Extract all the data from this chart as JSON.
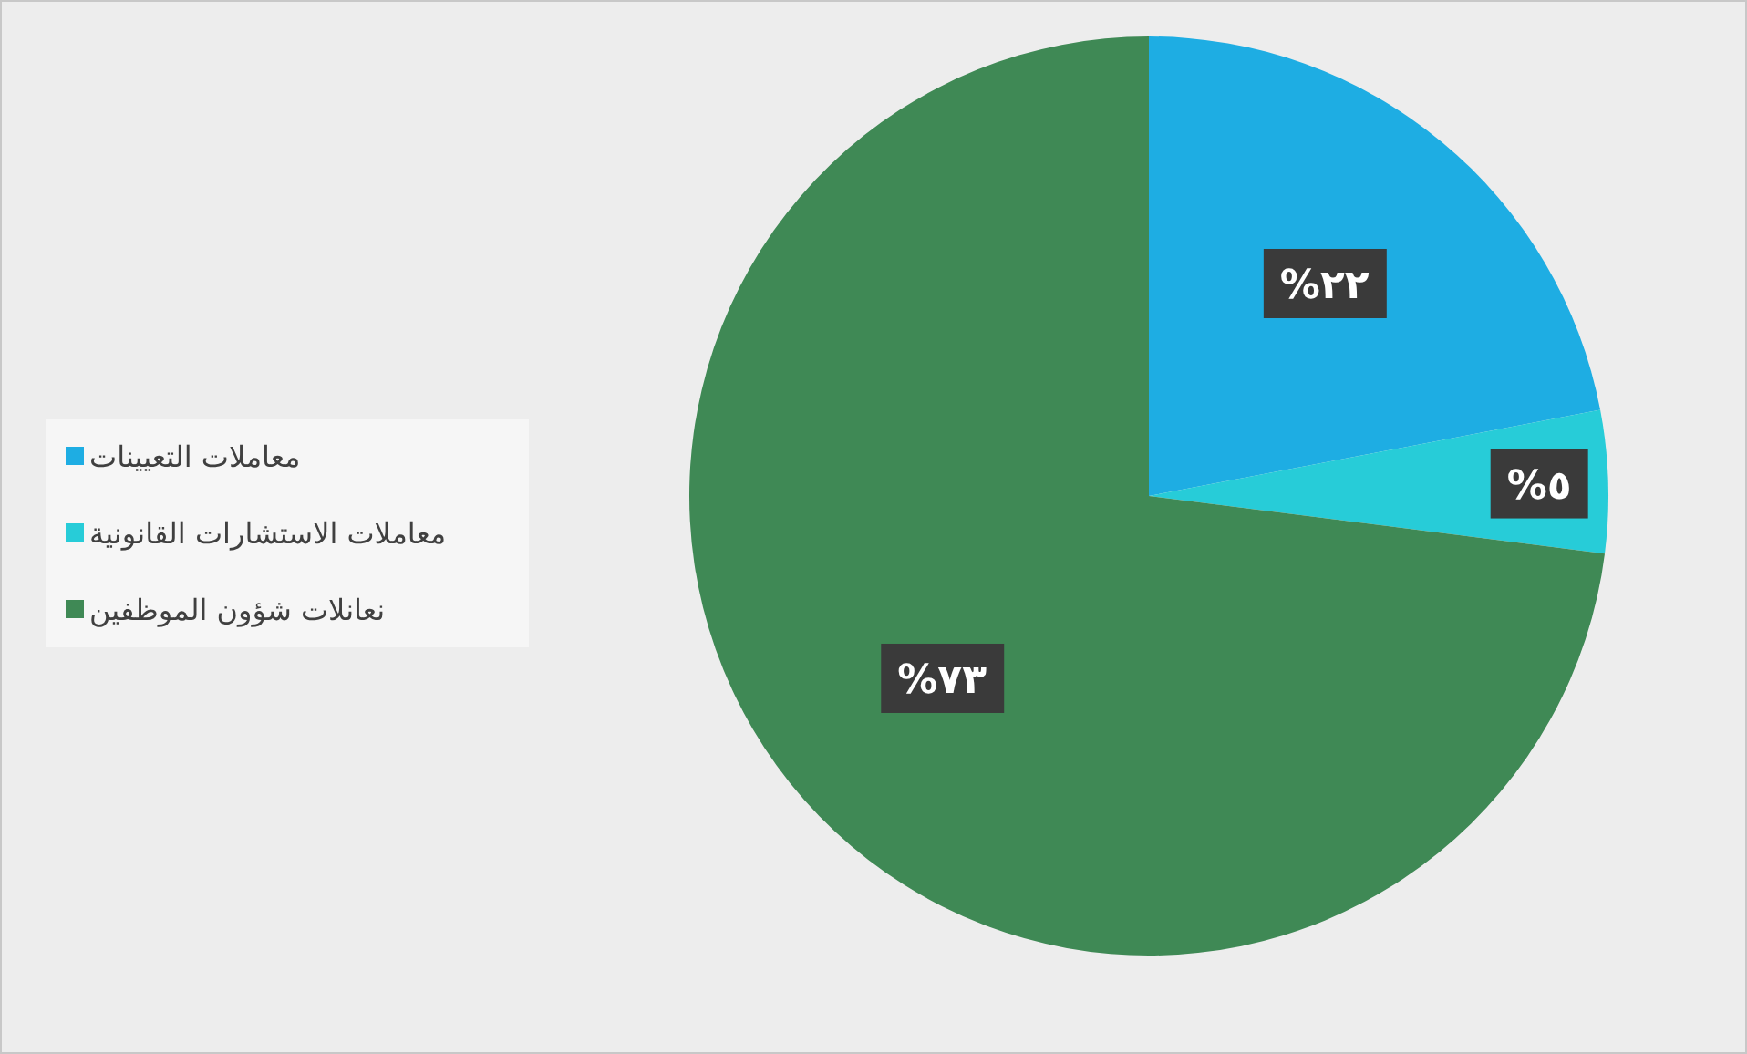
{
  "chart_data": {
    "type": "pie",
    "categories": [
      "معاملات التعيينات",
      "معاملات الاستشارات القانونية",
      "نعانلات شؤون الموظفين"
    ],
    "values": [
      22,
      5,
      73
    ],
    "colors": [
      "#1eade3",
      "#27ccd8",
      "#3f8955"
    ],
    "value_labels": [
      "٢٢%",
      "٥%",
      "٧٣%"
    ],
    "legend": "left"
  }
}
